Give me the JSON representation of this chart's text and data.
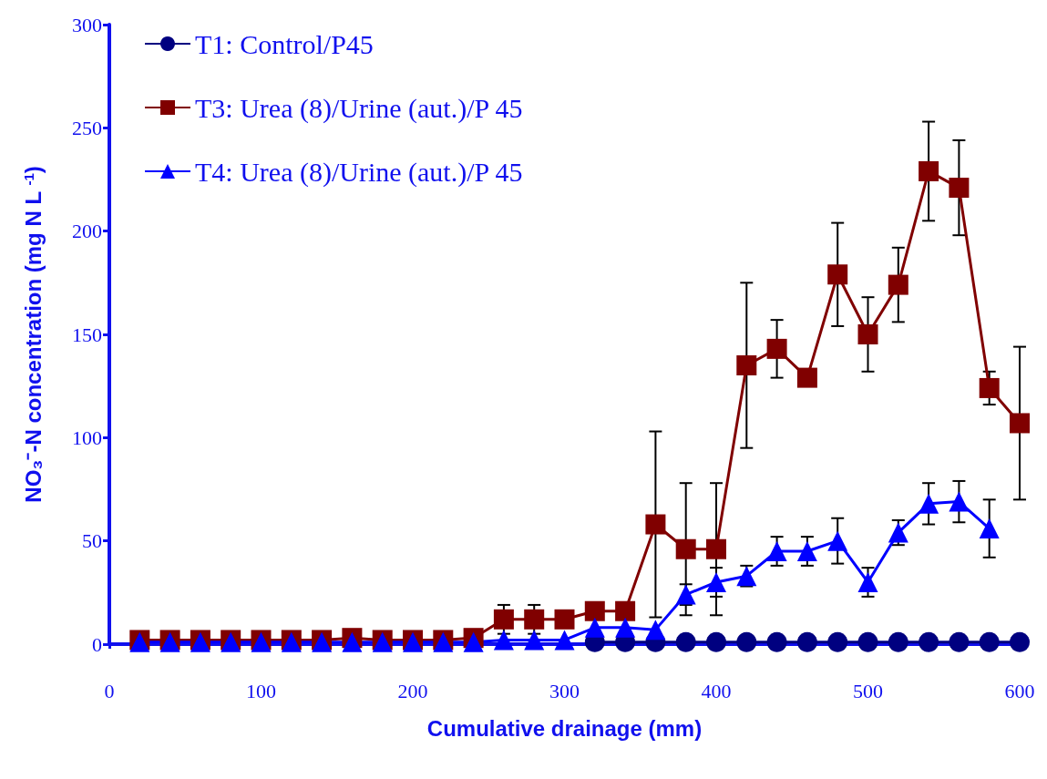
{
  "chart_data": {
    "type": "line",
    "xlabel": "Cumulative drainage (mm)",
    "ylabel": "NO₃⁻-N concentration (mg N L $^{-1}$)",
    "x": [
      20,
      40,
      60,
      80,
      100,
      120,
      140,
      160,
      180,
      200,
      220,
      240,
      260,
      280,
      300,
      320,
      340,
      360,
      380,
      400,
      420,
      440,
      460,
      480,
      500,
      520,
      540,
      560,
      580,
      600
    ],
    "series": [
      {
        "name": "T1: Control/P45",
        "color": "#000080",
        "marker": "circle",
        "values": [
          null,
          null,
          null,
          null,
          null,
          null,
          null,
          null,
          null,
          null,
          null,
          null,
          null,
          null,
          null,
          1,
          1,
          1,
          1,
          1,
          1,
          1,
          1,
          1,
          1,
          1,
          1,
          1,
          1,
          1
        ]
      },
      {
        "name": "T3: Urea (8)/Urine (aut.)/P 45",
        "color": "#800000",
        "marker": "square",
        "values": [
          2,
          2,
          2,
          2,
          2,
          2,
          2,
          3,
          2,
          2,
          2,
          3,
          12,
          12,
          12,
          16,
          16,
          58,
          46,
          46,
          135,
          143,
          129,
          179,
          150,
          174,
          229,
          221,
          124,
          107
        ],
        "errors": [
          null,
          null,
          null,
          null,
          null,
          null,
          null,
          null,
          null,
          null,
          null,
          null,
          7,
          7,
          null,
          null,
          null,
          45,
          32,
          32,
          40,
          14,
          null,
          25,
          18,
          18,
          24,
          23,
          8,
          37
        ]
      },
      {
        "name": "T4: Urea (8)/Urine (aut.)/P 45",
        "color": "#0000ff",
        "marker": "triangle",
        "values": [
          1,
          1,
          1,
          1,
          1,
          1,
          1,
          1,
          1,
          1,
          1,
          1,
          2,
          2,
          2,
          8,
          8,
          7,
          24,
          30,
          33,
          45,
          45,
          50,
          30,
          54,
          68,
          69,
          56,
          null
        ],
        "errors": [
          null,
          null,
          null,
          null,
          null,
          null,
          null,
          null,
          null,
          null,
          null,
          null,
          null,
          null,
          null,
          null,
          null,
          null,
          5,
          7,
          5,
          7,
          7,
          11,
          7,
          6,
          10,
          10,
          14,
          null
        ]
      }
    ],
    "xlim": [
      0,
      600
    ],
    "xticks": [
      0,
      100,
      200,
      300,
      400,
      500,
      600
    ],
    "ylim": [
      0,
      300
    ],
    "yticks": [
      0,
      50,
      100,
      150,
      200,
      250,
      300
    ],
    "grid": false,
    "legend": "top left",
    "line_style": "solid"
  }
}
